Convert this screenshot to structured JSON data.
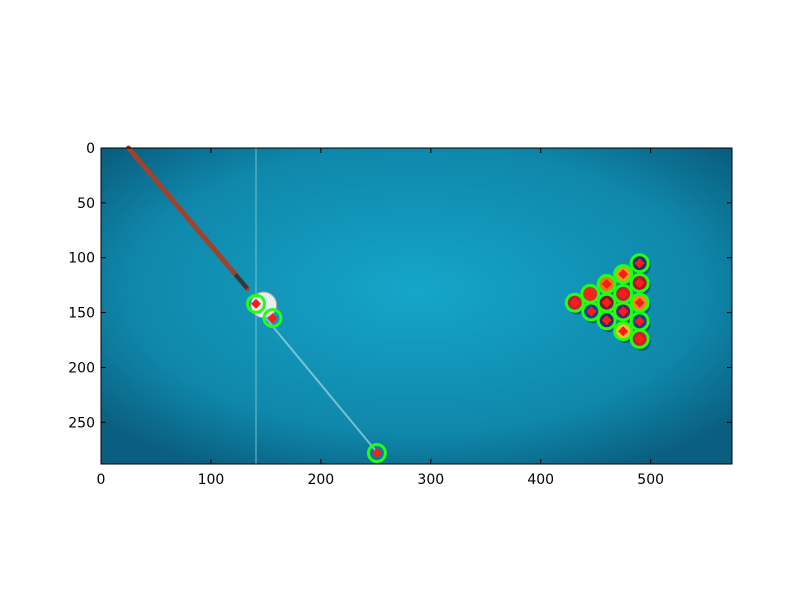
{
  "figure": {
    "background": "#ffffff",
    "table_color": "#1296b8",
    "table_edge_color": "#0a4f6e"
  },
  "axes": {
    "xlim": [
      0,
      574
    ],
    "ylim": [
      288,
      0
    ],
    "xticks": [
      0,
      100,
      200,
      300,
      400,
      500
    ],
    "yticks": [
      0,
      50,
      100,
      150,
      200,
      250
    ],
    "grid": false
  },
  "scene": {
    "cue_stick": {
      "from": [
        25,
        0
      ],
      "to": [
        133,
        128
      ],
      "color": "#a0422c",
      "tip_color": "#2b3a44"
    },
    "aim_line": {
      "from": [
        140,
        143
      ],
      "to": [
        250,
        276
      ],
      "color": "#bfe4ee"
    },
    "guide_line_x": 141,
    "white_ball": {
      "x": 148,
      "y": 143,
      "r": 9,
      "color": "#e9eef0"
    },
    "marker_colors": {
      "ring": "#22ff11",
      "center": "#ff1b1b"
    },
    "detections": [
      {
        "x": 141,
        "y": 142
      },
      {
        "x": 156,
        "y": 155
      },
      {
        "x": 251,
        "y": 278
      },
      {
        "x": 431,
        "y": 141
      },
      {
        "x": 445,
        "y": 133
      },
      {
        "x": 446,
        "y": 149
      },
      {
        "x": 460,
        "y": 124
      },
      {
        "x": 460,
        "y": 141
      },
      {
        "x": 460,
        "y": 157
      },
      {
        "x": 475,
        "y": 115
      },
      {
        "x": 475,
        "y": 133
      },
      {
        "x": 475,
        "y": 149
      },
      {
        "x": 475,
        "y": 167
      },
      {
        "x": 490,
        "y": 105
      },
      {
        "x": 490,
        "y": 123
      },
      {
        "x": 490,
        "y": 141
      },
      {
        "x": 490,
        "y": 158
      },
      {
        "x": 490,
        "y": 174
      }
    ],
    "rack_ball_colors": [
      "#c3212b",
      "#d8331f",
      "#1b3f8f",
      "#e57c10",
      "#7b1b2a",
      "#1c2f7a",
      "#e0a31a",
      "#c3212b",
      "#5b1f6e",
      "#f3c22a",
      "#22306a",
      "#a8182a",
      "#ff8a1a",
      "#1b3f8f",
      "#c3212b"
    ]
  }
}
